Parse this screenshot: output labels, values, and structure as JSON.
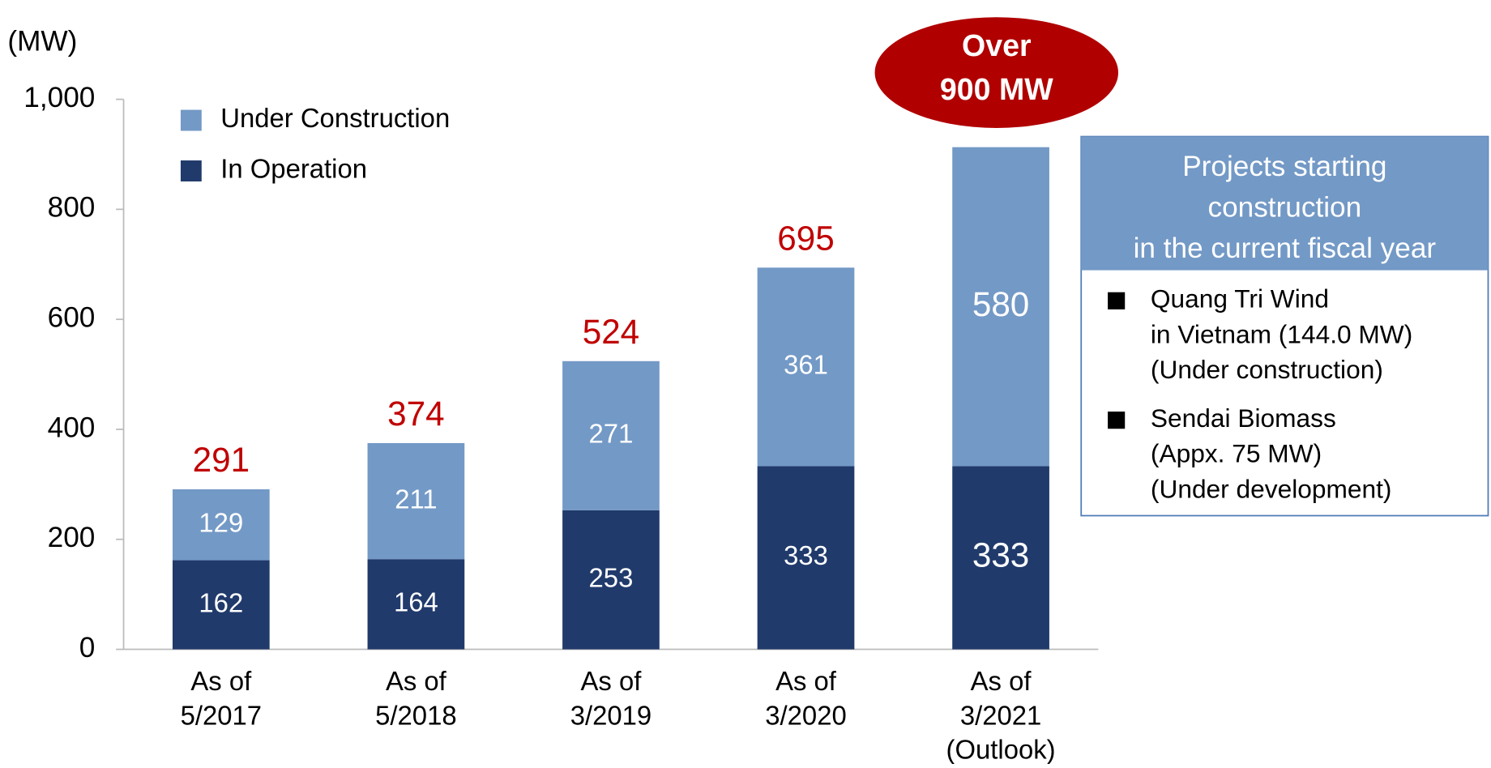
{
  "chart_data": {
    "type": "stacked_bar",
    "y_label": "(MW)",
    "categories": [
      "As of\n5/2017",
      "As of\n5/2018",
      "As of\n3/2019",
      "As of\n3/2020",
      "As of\n3/2021\n(Outlook)"
    ],
    "series": [
      {
        "name": "In Operation",
        "color": "#203a6b",
        "values": [
          162,
          164,
          253,
          333,
          333
        ]
      },
      {
        "name": "Under Construction",
        "color": "#7399c6",
        "values": [
          129,
          211,
          271,
          361,
          580
        ]
      }
    ],
    "totals": [
      291,
      374,
      524,
      695,
      null
    ],
    "total_color": "#c00000",
    "ylim": [
      0,
      1000
    ],
    "yticks": [
      0,
      200,
      400,
      {
        "value": 600,
        "label": "600"
      },
      800,
      {
        "value": 1000,
        "label": "1,000"
      }
    ],
    "annotation": [
      "Over",
      "900 MW"
    ],
    "box": {
      "title": [
        "Projects starting",
        "construction",
        "in the current fiscal year"
      ],
      "items": [
        [
          "Quang Tri Wind",
          "in Vietnam (144.0 MW)",
          "(Under construction)"
        ],
        [
          "Sendai Biomass",
          "(Appx. 75 MW)",
          "(Under development)"
        ]
      ]
    }
  }
}
